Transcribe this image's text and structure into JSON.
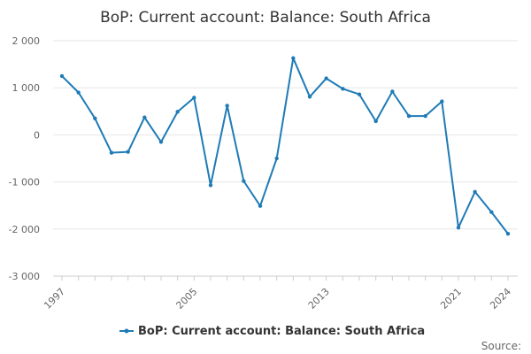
{
  "chart_data": {
    "type": "line",
    "title": "BoP: Current account: Balance: South Africa",
    "xlabel": "",
    "ylabel": "",
    "x": [
      1997,
      1998,
      1999,
      2000,
      2001,
      2002,
      2003,
      2004,
      2005,
      2006,
      2007,
      2008,
      2009,
      2010,
      2011,
      2012,
      2013,
      2014,
      2015,
      2016,
      2017,
      2018,
      2019,
      2020,
      2021,
      2022,
      2023,
      2024
    ],
    "x_ticks": [
      1997,
      2005,
      2013,
      2021,
      2024
    ],
    "ylim": [
      -3000,
      2000
    ],
    "y_ticks": [
      -3000,
      -2000,
      -1000,
      0,
      1000,
      2000
    ],
    "y_tick_labels": [
      "-3 000",
      "-2 000",
      "-1 000",
      "0",
      "1 000",
      "2 000"
    ],
    "series": [
      {
        "name": "BoP: Current account: Balance: South Africa",
        "color": "#1f7bb6",
        "values": [
          1250,
          900,
          350,
          -380,
          -360,
          370,
          -150,
          490,
          790,
          -1070,
          620,
          -980,
          -1510,
          -500,
          1630,
          810,
          1200,
          980,
          860,
          290,
          920,
          400,
          400,
          710,
          -1970,
          -1210,
          -1640,
          -2100
        ]
      }
    ],
    "grid": true,
    "legend": "bottom-center"
  },
  "source_label": "Source:"
}
